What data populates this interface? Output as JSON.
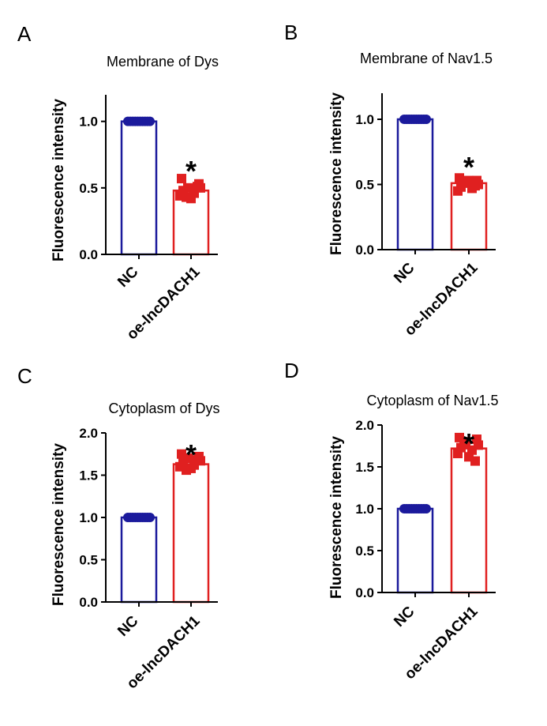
{
  "figure": {
    "background": "#ffffff",
    "nc_color": "#1b1a9c",
    "oe_color": "#e02020"
  },
  "chart_data": [
    {
      "panel": "A",
      "type": "bar",
      "title": "Membrane of Dys",
      "ylabel": "Fluorescence intensity",
      "xlabel": "",
      "categories": [
        "NC",
        "oe-lncDACH1"
      ],
      "values": [
        1.0,
        0.48
      ],
      "points": [
        [
          1.0,
          1.0,
          1.0,
          1.0,
          1.0,
          1.0,
          1.0,
          1.0,
          1.0,
          1.0
        ],
        [
          0.57,
          0.53,
          0.5,
          0.5,
          0.48,
          0.46,
          0.44,
          0.42,
          0.51,
          0.43
        ]
      ],
      "ylim": [
        0,
        1.2
      ],
      "yticks": [
        0.0,
        0.5,
        1.0
      ],
      "ytick_labels": [
        "0.0",
        "0.5",
        "1.0"
      ],
      "significance": [
        "",
        "*"
      ]
    },
    {
      "panel": "B",
      "type": "bar",
      "title": "Membrane of Nav1.5",
      "ylabel": "Fluorescence intensity",
      "xlabel": "",
      "categories": [
        "NC",
        "oe-lncDACH1"
      ],
      "values": [
        1.0,
        0.51
      ],
      "points": [
        [
          1.0,
          1.0,
          1.0,
          1.0,
          1.0,
          1.0,
          1.0,
          1.0,
          1.0,
          1.0
        ],
        [
          0.55,
          0.53,
          0.52,
          0.5,
          0.48,
          0.47,
          0.45,
          0.53,
          0.49,
          0.51
        ]
      ],
      "ylim": [
        0,
        1.2
      ],
      "yticks": [
        0.0,
        0.5,
        1.0
      ],
      "ytick_labels": [
        "0.0",
        "0.5",
        "1.0"
      ],
      "significance": [
        "",
        "*"
      ]
    },
    {
      "panel": "C",
      "type": "bar",
      "title": "Cytoplasm of Dys",
      "ylabel": "Fluorescence intensity",
      "xlabel": "",
      "categories": [
        "NC",
        "oe-lncDACH1"
      ],
      "values": [
        1.0,
        1.63
      ],
      "points": [
        [
          1.0,
          1.0,
          1.0,
          1.0,
          1.0,
          1.0,
          1.0,
          1.0,
          1.0,
          1.0
        ],
        [
          1.75,
          1.72,
          1.7,
          1.67,
          1.65,
          1.62,
          1.6,
          1.58,
          1.68,
          1.56
        ]
      ],
      "ylim": [
        0,
        2.0
      ],
      "yticks": [
        0.0,
        0.5,
        1.0,
        1.5,
        2.0
      ],
      "ytick_labels": [
        "0.0",
        "0.5",
        "1.0",
        "1.5",
        "2.0"
      ],
      "significance": [
        "",
        "*"
      ]
    },
    {
      "panel": "D",
      "type": "bar",
      "title": "Cytoplasm of Nav1.5",
      "ylabel": "Fluorescence intensity",
      "xlabel": "",
      "categories": [
        "NC",
        "oe-lncDACH1"
      ],
      "values": [
        1.0,
        1.72
      ],
      "points": [
        [
          1.0,
          1.0,
          1.0,
          1.0,
          1.0,
          1.0,
          1.0,
          1.0,
          1.0,
          1.0
        ],
        [
          1.85,
          1.83,
          1.8,
          1.76,
          1.73,
          1.7,
          1.66,
          1.62,
          1.57,
          1.78
        ]
      ],
      "ylim": [
        0,
        2.0
      ],
      "yticks": [
        0.0,
        0.5,
        1.0,
        1.5,
        2.0
      ],
      "ytick_labels": [
        "0.0",
        "0.5",
        "1.0",
        "1.5",
        "2.0"
      ],
      "significance": [
        "",
        "*"
      ]
    }
  ]
}
